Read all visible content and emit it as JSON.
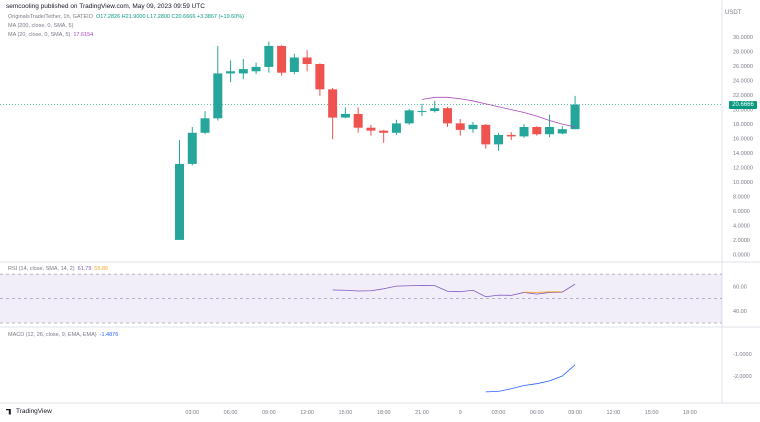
{
  "header": "semcooling published on TradingView.com, May 09, 2023 09:59 UTC",
  "legend": {
    "symbol": "OriginalsTrade/Tether, 1h, GATEIO",
    "ohlc": "O17.2826 H21.9000 L17.2800 C20.6666 +3.3867 (+19.60%)",
    "ma200": "MA (200, close, 0, SMA, 5)",
    "ma20_label": "MA (20, close, 0, SMA, 5)",
    "ma20_value": "17.6154",
    "rsi_label": "RSI (14, close, SMA, 14, 2)",
    "rsi_value1": "61.79",
    "rsi_value2": "55.86",
    "macd_label": "MACD (12, 26, close, 9, EMA, EMA)",
    "macd_value": "-1.4876"
  },
  "currency": "USDT",
  "price_tag": "20.6666",
  "brand": "TradingView",
  "colors": {
    "up": "#26a69a",
    "down": "#ef5350",
    "ma": "#ab47bc",
    "rsi": "#7e57c2",
    "rsi_ma": "#f9a825",
    "macd": "#2962ff"
  },
  "chart_data": {
    "type": "candlestick",
    "y_ticks": [
      "30.0000",
      "28.0000",
      "26.0000",
      "24.0000",
      "22.0000",
      "20.0000",
      "18.0000",
      "16.0000",
      "14.0000",
      "12.0000",
      "10.0000",
      "8.0000",
      "6.0000",
      "4.0000",
      "2.0000",
      "0.0000"
    ],
    "y_tick_values": [
      30,
      28,
      26,
      24,
      22,
      20,
      18,
      16,
      14,
      12,
      10,
      8,
      6,
      4,
      2,
      0
    ],
    "ylim": [
      -0.5,
      31
    ],
    "x_ticks": [
      "03:00",
      "06:00",
      "09:00",
      "12:00",
      "15:00",
      "18:00",
      "21:00",
      "9",
      "03:00",
      "06:00",
      "09:00",
      "12:00",
      "15:00",
      "18:00"
    ],
    "x_tick_hour": [
      3,
      6,
      9,
      12,
      15,
      18,
      21,
      24,
      27,
      30,
      33,
      36,
      39,
      42
    ],
    "candles": [
      {
        "h": 2,
        "o": 2.0,
        "c": 12.5,
        "hi": 15.8,
        "lo": 2.0
      },
      {
        "h": 3,
        "o": 12.5,
        "c": 16.8,
        "hi": 17.6,
        "lo": 12.3
      },
      {
        "h": 4,
        "o": 16.8,
        "c": 18.8,
        "hi": 19.8,
        "lo": 16.6
      },
      {
        "h": 5,
        "o": 18.8,
        "c": 25.0,
        "hi": 28.8,
        "lo": 18.5
      },
      {
        "h": 6,
        "o": 25.0,
        "c": 25.3,
        "hi": 26.8,
        "lo": 23.8
      },
      {
        "h": 7,
        "o": 25.0,
        "c": 25.6,
        "hi": 27.0,
        "lo": 24.2
      },
      {
        "h": 8,
        "o": 25.3,
        "c": 25.9,
        "hi": 26.5,
        "lo": 24.9
      },
      {
        "h": 9,
        "o": 25.9,
        "c": 28.8,
        "hi": 29.4,
        "lo": 25.1
      },
      {
        "h": 10,
        "o": 28.8,
        "c": 25.1,
        "hi": 28.9,
        "lo": 24.7
      },
      {
        "h": 11,
        "o": 25.2,
        "c": 27.2,
        "hi": 27.7,
        "lo": 24.9
      },
      {
        "h": 12,
        "o": 27.2,
        "c": 26.3,
        "hi": 28.2,
        "lo": 25.3
      },
      {
        "h": 13,
        "o": 26.3,
        "c": 22.8,
        "hi": 26.4,
        "lo": 21.9
      },
      {
        "h": 14,
        "o": 22.8,
        "c": 18.9,
        "hi": 23.0,
        "lo": 15.9
      },
      {
        "h": 15,
        "o": 18.9,
        "c": 19.4,
        "hi": 20.3,
        "lo": 18.8
      },
      {
        "h": 16,
        "o": 19.4,
        "c": 17.5,
        "hi": 20.3,
        "lo": 16.8
      },
      {
        "h": 17,
        "o": 17.5,
        "c": 17.1,
        "hi": 17.9,
        "lo": 16.4
      },
      {
        "h": 18,
        "o": 17.1,
        "c": 16.8,
        "hi": 17.2,
        "lo": 15.4
      },
      {
        "h": 19,
        "o": 16.8,
        "c": 18.1,
        "hi": 18.6,
        "lo": 16.5
      },
      {
        "h": 20,
        "o": 18.1,
        "c": 19.9,
        "hi": 20.1,
        "lo": 17.9
      },
      {
        "h": 21,
        "o": 19.7,
        "c": 19.8,
        "hi": 20.8,
        "lo": 19.1
      },
      {
        "h": 22,
        "o": 19.8,
        "c": 20.2,
        "hi": 21.2,
        "lo": 19.6
      },
      {
        "h": 23,
        "o": 20.2,
        "c": 18.1,
        "hi": 20.4,
        "lo": 17.6
      },
      {
        "h": 24,
        "o": 18.1,
        "c": 17.2,
        "hi": 18.7,
        "lo": 16.4
      },
      {
        "h": 25,
        "o": 17.3,
        "c": 17.9,
        "hi": 18.3,
        "lo": 16.8
      },
      {
        "h": 26,
        "o": 17.9,
        "c": 15.2,
        "hi": 18.0,
        "lo": 14.6
      },
      {
        "h": 27,
        "o": 15.2,
        "c": 16.5,
        "hi": 16.8,
        "lo": 14.3
      },
      {
        "h": 28,
        "o": 16.5,
        "c": 16.3,
        "hi": 16.9,
        "lo": 15.8
      },
      {
        "h": 29,
        "o": 16.3,
        "c": 17.6,
        "hi": 18.0,
        "lo": 16.1
      },
      {
        "h": 30,
        "o": 17.6,
        "c": 16.6,
        "hi": 17.7,
        "lo": 16.4
      },
      {
        "h": 31,
        "o": 16.6,
        "c": 17.6,
        "hi": 19.3,
        "lo": 16.2
      },
      {
        "h": 32,
        "o": 16.7,
        "c": 17.3,
        "hi": 17.7,
        "lo": 16.6
      },
      {
        "h": 33,
        "o": 17.3,
        "c": 20.7,
        "hi": 21.9,
        "lo": 17.3
      }
    ],
    "ma20": [
      [
        21,
        21.4
      ],
      [
        22,
        21.7
      ],
      [
        23,
        21.7
      ],
      [
        24,
        21.5
      ],
      [
        25,
        21.2
      ],
      [
        26,
        20.8
      ],
      [
        27,
        20.4
      ],
      [
        28,
        20.0
      ],
      [
        29,
        19.6
      ],
      [
        30,
        19.1
      ],
      [
        31,
        18.5
      ],
      [
        32,
        18.0
      ],
      [
        33,
        17.6
      ]
    ],
    "rsi": {
      "ylim": [
        30,
        75
      ],
      "ticks": [
        60,
        40
      ],
      "bands": [
        70,
        50,
        30
      ],
      "values": [
        [
          14,
          57
        ],
        [
          15,
          56.8
        ],
        [
          16,
          56.2
        ],
        [
          17,
          56.4
        ],
        [
          18,
          58
        ],
        [
          19,
          60.2
        ],
        [
          20,
          60.5
        ],
        [
          21,
          60.7
        ],
        [
          22,
          60.6
        ],
        [
          23,
          56
        ],
        [
          24,
          55.6
        ],
        [
          25,
          56.8
        ],
        [
          26,
          51.5
        ],
        [
          27,
          52.8
        ],
        [
          28,
          52.6
        ],
        [
          29,
          55
        ],
        [
          30,
          53.6
        ],
        [
          31,
          55
        ],
        [
          32,
          55.3
        ],
        [
          33,
          61.8
        ]
      ],
      "ma_values": [
        [
          29,
          55.2
        ],
        [
          30,
          55.0
        ],
        [
          31,
          55.5
        ],
        [
          32,
          55.7
        ]
      ]
    },
    "macd": {
      "ylim": [
        -3,
        0
      ],
      "ticks": [
        -1,
        -2
      ],
      "tick_labels": [
        "-1.0000",
        "-2.0000"
      ],
      "values": [
        [
          26,
          -2.72
        ],
        [
          27,
          -2.7
        ],
        [
          28,
          -2.58
        ],
        [
          29,
          -2.43
        ],
        [
          30,
          -2.35
        ],
        [
          31,
          -2.22
        ],
        [
          32,
          -2.0
        ],
        [
          33,
          -1.49
        ]
      ]
    }
  }
}
